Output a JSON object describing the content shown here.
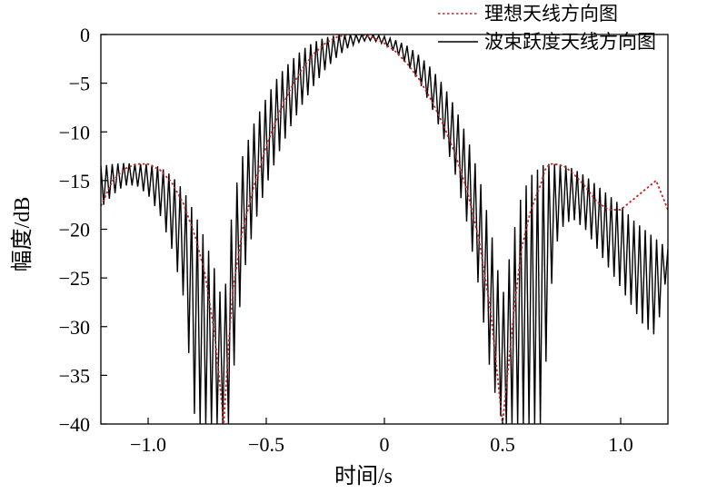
{
  "chart_data": {
    "type": "line",
    "title": "",
    "xlabel": "时间/s",
    "ylabel": "幅度/dB",
    "xlim": [
      -1.2,
      1.2
    ],
    "ylim": [
      -40,
      0
    ],
    "x_ticks": [
      -1.0,
      -0.5,
      0,
      0.5,
      1.0
    ],
    "x_tick_labels": [
      "−1.0",
      "−0.5",
      "0",
      "0.5",
      "1.0"
    ],
    "y_ticks": [
      0,
      -5,
      -10,
      -15,
      -20,
      -25,
      -30,
      -35,
      -40
    ],
    "y_tick_labels": [
      "0",
      "−5",
      "−10",
      "−15",
      "−20",
      "−25",
      "−30",
      "−35",
      "−40"
    ],
    "grid": false,
    "legend_position": "top-right",
    "series": [
      {
        "name": "理想天线方向图",
        "style": "dotted",
        "color": "#c0282a",
        "x": [
          -1.2,
          -1.15,
          -1.1,
          -1.05,
          -1.0,
          -0.95,
          -0.9,
          -0.85,
          -0.8,
          -0.76,
          -0.72,
          -0.7,
          -0.68,
          -0.66,
          -0.64,
          -0.6,
          -0.55,
          -0.5,
          -0.45,
          -0.4,
          -0.35,
          -0.3,
          -0.25,
          -0.2,
          -0.15,
          -0.1,
          -0.05,
          0.0,
          0.05,
          0.1,
          0.15,
          0.2,
          0.25,
          0.3,
          0.35,
          0.4,
          0.45,
          0.5,
          0.55,
          0.58,
          0.62,
          0.66,
          0.68,
          0.7,
          0.72,
          0.76,
          0.8,
          0.85,
          0.9,
          0.95,
          1.0,
          1.05,
          1.1,
          1.15,
          1.2
        ],
        "y": [
          -17.6,
          -15.0,
          -13.8,
          -13.3,
          -13.3,
          -13.9,
          -15.2,
          -17.4,
          -20.8,
          -24.5,
          -30.5,
          -35.0,
          -40.0,
          -32.0,
          -26.0,
          -20.0,
          -15.4,
          -11.5,
          -8.3,
          -5.7,
          -3.6,
          -2.0,
          -0.9,
          -0.25,
          0.0,
          0.0,
          -0.3,
          -0.9,
          -1.8,
          -3.1,
          -4.7,
          -6.8,
          -9.3,
          -12.3,
          -16.0,
          -21.0,
          -28.5,
          -40.0,
          -28.0,
          -22.0,
          -18.0,
          -15.5,
          -13.9,
          -13.3,
          -13.3,
          -13.5,
          -14.3,
          -15.6,
          -17.2,
          -18.0,
          -18.0,
          -17.0,
          -16.0,
          -15.0,
          -18.0
        ]
      },
      {
        "name": "波束跃度天线方向图",
        "style": "solid",
        "color": "#000000",
        "oscillation_period": 0.024,
        "x": [
          -1.2,
          -1.15,
          -1.1,
          -1.05,
          -1.0,
          -0.95,
          -0.9,
          -0.85,
          -0.8,
          -0.76,
          -0.72,
          -0.7,
          -0.68,
          -0.66,
          -0.64,
          -0.6,
          -0.55,
          -0.5,
          -0.45,
          -0.4,
          -0.35,
          -0.3,
          -0.25,
          -0.2,
          -0.15,
          -0.1,
          -0.05,
          0.0,
          0.05,
          0.1,
          0.15,
          0.2,
          0.25,
          0.3,
          0.35,
          0.4,
          0.45,
          0.5,
          0.55,
          0.58,
          0.62,
          0.66,
          0.68,
          0.7,
          0.72,
          0.76,
          0.8,
          0.85,
          0.9,
          0.95,
          1.0,
          1.05,
          1.1,
          1.15,
          1.2
        ],
        "upper": [
          -13.5,
          -13.3,
          -13.2,
          -13.3,
          -13.3,
          -13.6,
          -14.5,
          -16.0,
          -18.5,
          -21.0,
          -24.0,
          -26.0,
          -28.0,
          -22.0,
          -17.0,
          -12.5,
          -9.0,
          -6.5,
          -4.3,
          -2.8,
          -1.6,
          -0.8,
          -0.3,
          -0.05,
          0.0,
          0.0,
          0.0,
          -0.2,
          -0.6,
          -1.2,
          -2.2,
          -3.5,
          -5.2,
          -7.5,
          -10.5,
          -14.5,
          -20.0,
          -27.0,
          -20.0,
          -16.5,
          -14.5,
          -13.6,
          -13.3,
          -13.3,
          -13.3,
          -13.4,
          -13.8,
          -14.5,
          -15.5,
          -16.5,
          -17.5,
          -19.0,
          -20.0,
          -21.0,
          -22.0
        ],
        "lower": [
          -17.8,
          -16.5,
          -15.5,
          -15.5,
          -16.5,
          -18.5,
          -22.0,
          -27.0,
          -40.0,
          -40.0,
          -40.0,
          -40.0,
          -40.0,
          -40.0,
          -35.0,
          -25.0,
          -19.5,
          -15.5,
          -12.3,
          -9.6,
          -7.3,
          -5.3,
          -3.6,
          -2.3,
          -1.3,
          -0.7,
          -0.6,
          -1.0,
          -1.9,
          -3.2,
          -5.0,
          -7.5,
          -10.6,
          -14.4,
          -19.4,
          -26.0,
          -35.0,
          -40.0,
          -40.0,
          -40.0,
          -40.0,
          -40.0,
          -35.0,
          -28.0,
          -22.0,
          -19.5,
          -19.0,
          -20.0,
          -22.0,
          -24.0,
          -26.0,
          -28.0,
          -30.0,
          -31.0,
          -24.0
        ]
      }
    ]
  }
}
